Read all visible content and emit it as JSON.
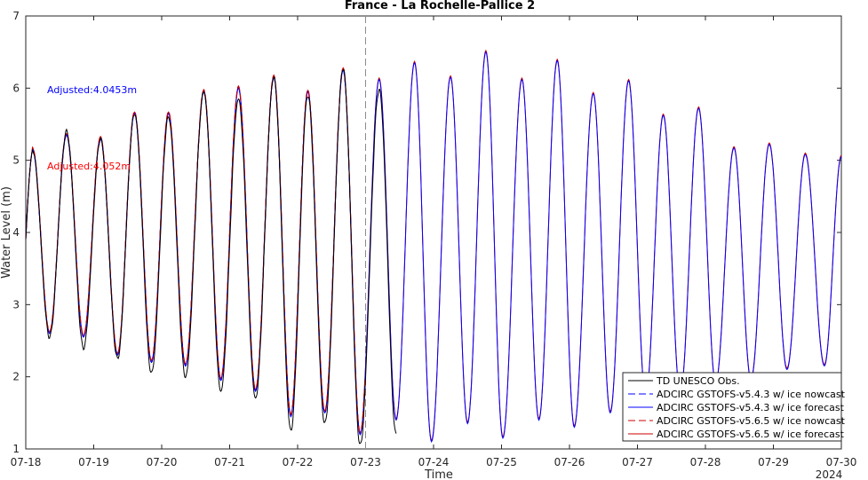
{
  "chart_data": {
    "type": "line",
    "title": "France - La Rochelle-Pallice 2",
    "xlabel": "Time",
    "ylabel": "Water Level (m)",
    "x_year_label": "2024",
    "xlim": [
      "07-18",
      "07-30"
    ],
    "ylim": [
      1,
      7
    ],
    "x_ticks": [
      "07-18",
      "07-19",
      "07-20",
      "07-21",
      "07-22",
      "07-23",
      "07-24",
      "07-25",
      "07-26",
      "07-27",
      "07-28",
      "07-29",
      "07-30"
    ],
    "y_ticks": [
      1,
      2,
      3,
      4,
      5,
      6,
      7
    ],
    "grid": false,
    "legend_position": "bottom-right",
    "nowcast_forecast_divider": "07-23",
    "observation_end": "07-23.5",
    "annotations": [
      {
        "text": "Adjusted:4.0453m",
        "color": "#0000ff"
      },
      {
        "text": "Adjusted:4.052m",
        "color": "#ff0000"
      }
    ],
    "series": [
      {
        "name": "TD UNESCO Obs.",
        "color": "#000000",
        "style": "solid"
      },
      {
        "name": "ADCIRC GSTOFS-v5.4.3 w/ ice nowcast",
        "color": "#0000ff",
        "style": "dashed"
      },
      {
        "name": "ADCIRC GSTOFS-v5.4.3 w/ ice forecast",
        "color": "#0000ff",
        "style": "solid"
      },
      {
        "name": "ADCIRC GSTOFS-v5.6.5 w/ ice nowcast",
        "color": "#cc0000",
        "style": "dashed"
      },
      {
        "name": "ADCIRC GSTOFS-v5.6.5 w/ ice forecast",
        "color": "#cc0000",
        "style": "solid"
      }
    ],
    "tide_extrema": {
      "x_days_since_07-18": [
        0.1,
        0.35,
        0.6,
        0.85,
        1.1,
        1.35,
        1.6,
        1.85,
        2.1,
        2.35,
        2.62,
        2.87,
        3.13,
        3.38,
        3.65,
        3.9,
        4.15,
        4.4,
        4.67,
        4.92,
        5.2,
        5.45,
        5.72,
        5.97,
        6.25,
        6.5,
        6.77,
        7.02,
        7.3,
        7.55,
        7.82,
        8.07,
        8.35,
        8.6,
        8.87,
        9.12,
        9.38,
        9.63,
        9.9,
        10.15,
        10.42,
        10.67,
        10.94,
        11.2,
        11.47,
        11.75,
        12.0
      ],
      "obs": [
        5.15,
        2.55,
        5.4,
        2.4,
        5.3,
        2.25,
        5.65,
        2.05,
        5.6,
        2.0,
        5.95,
        1.8,
        5.85,
        1.7,
        6.15,
        1.25,
        5.9,
        1.35,
        6.28,
        1.05,
        5.98,
        1.2
      ],
      "model": [
        5.15,
        2.6,
        5.35,
        2.55,
        5.3,
        2.3,
        5.65,
        2.2,
        5.65,
        2.15,
        5.95,
        1.95,
        6.0,
        1.8,
        6.15,
        1.45,
        5.95,
        1.5,
        6.25,
        1.2,
        6.12,
        1.4,
        6.35,
        1.1,
        6.15,
        1.35,
        6.5,
        1.15,
        6.12,
        1.4,
        6.38,
        1.3,
        5.92,
        1.5,
        6.1,
        1.7,
        5.62,
        1.75,
        5.72,
        1.9,
        5.17,
        1.95,
        5.22,
        2.1,
        5.08,
        2.15,
        5.05
      ]
    }
  }
}
